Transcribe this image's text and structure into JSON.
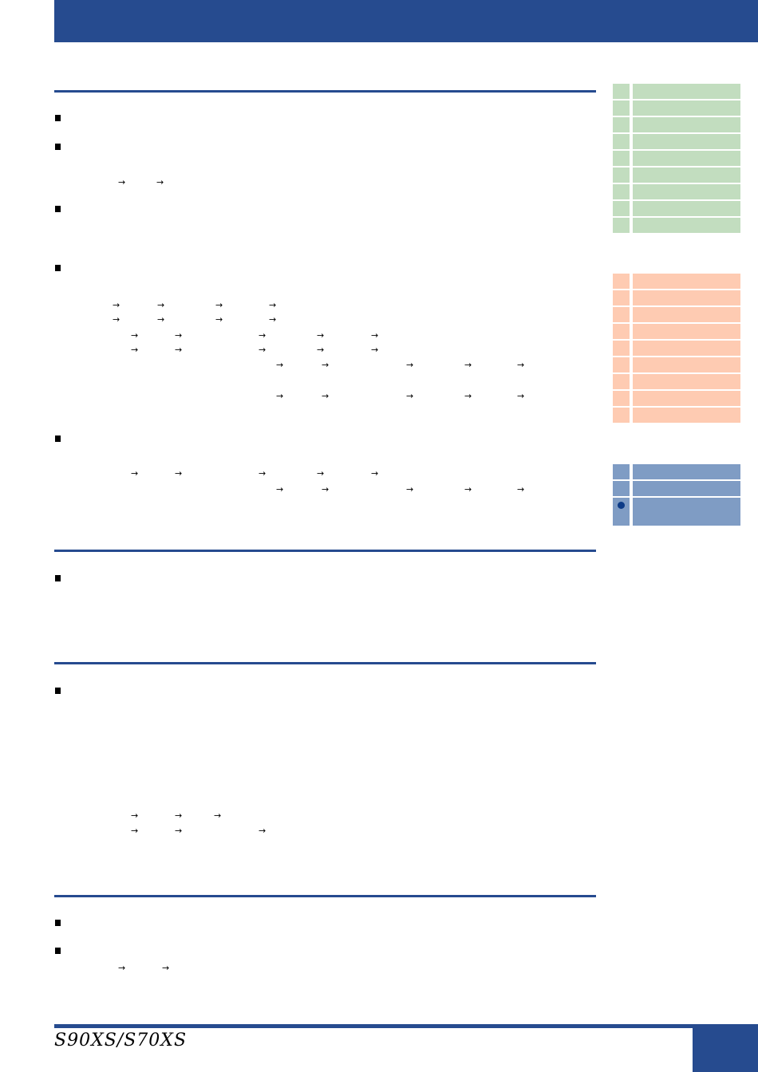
{
  "footer": {
    "logo_text": "S90XS/S70XS"
  },
  "colors": {
    "header": "#264b8f",
    "green_tab": "#c2ddbf",
    "peach_tab": "#fecbb2",
    "blue_tab": "#7f9cc4",
    "dot": "#0d3b87"
  },
  "arrow_glyph": "→"
}
